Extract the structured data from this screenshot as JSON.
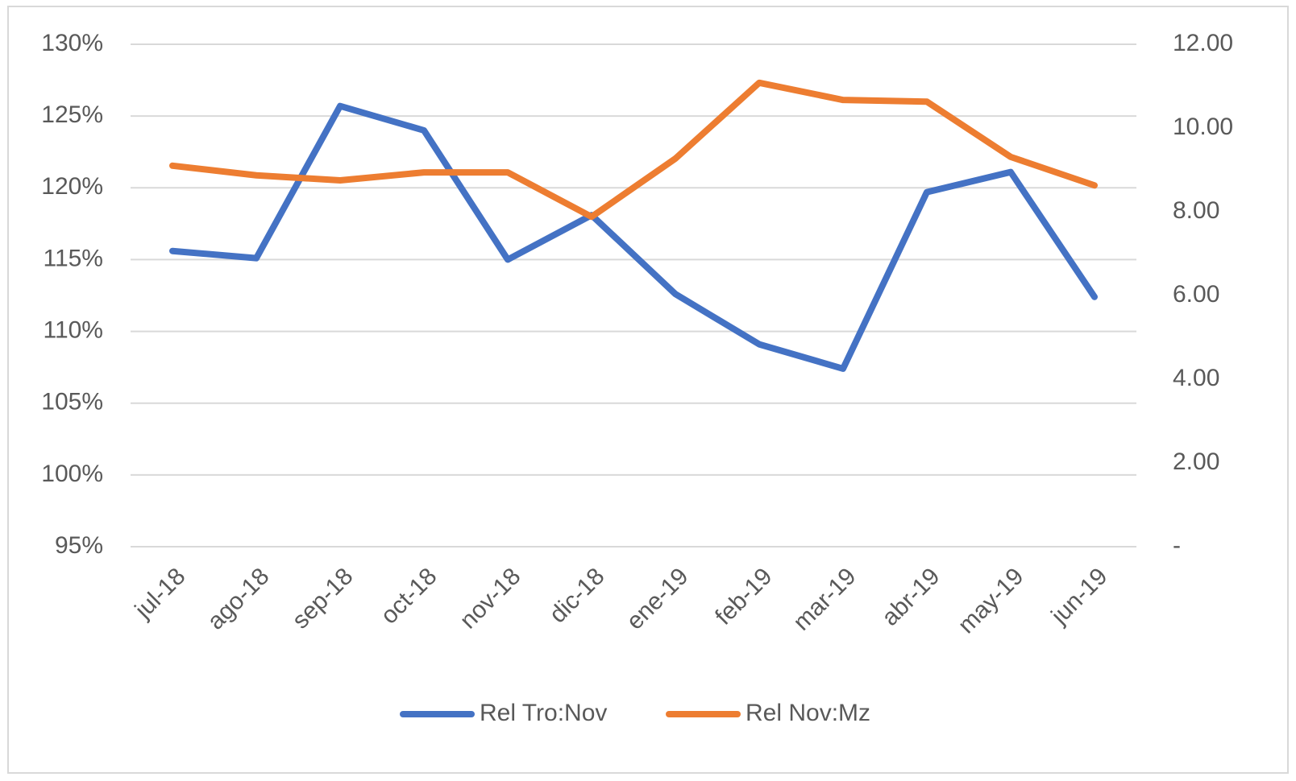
{
  "chart_data": {
    "type": "line",
    "categories": [
      "jul-18",
      "ago-18",
      "sep-18",
      "oct-18",
      "nov-18",
      "dic-18",
      "ene-19",
      "feb-19",
      "mar-19",
      "abr-19",
      "may-19",
      "jun-19"
    ],
    "series": [
      {
        "name": "Rel Tro:Nov",
        "color": "#4472c4",
        "values": [
          115.6,
          115.1,
          125.7,
          124.0,
          115.0,
          118.1,
          112.6,
          109.1,
          107.4,
          119.7,
          121.1,
          112.4
        ]
      },
      {
        "name": "Rel Nov:Mz",
        "color": "#ed7d31",
        "axis": "y2",
        "values": [
          9.1,
          8.87,
          8.75,
          8.94,
          8.94,
          7.88,
          9.27,
          11.08,
          10.67,
          10.63,
          9.31,
          8.63
        ]
      }
    ],
    "ylim": [
      95,
      130
    ],
    "yticks": [
      {
        "value": 95,
        "label": "95%"
      },
      {
        "value": 100,
        "label": "100%"
      },
      {
        "value": 105,
        "label": "105%"
      },
      {
        "value": 110,
        "label": "110%"
      },
      {
        "value": 115,
        "label": "115%"
      },
      {
        "value": 120,
        "label": "120%"
      },
      {
        "value": 125,
        "label": "125%"
      },
      {
        "value": 130,
        "label": "130%"
      }
    ],
    "y2lim": [
      0,
      12
    ],
    "y2ticks": [
      {
        "value": 0,
        "label": "-"
      },
      {
        "value": 2,
        "label": "2.00"
      },
      {
        "value": 4,
        "label": "4.00"
      },
      {
        "value": 6,
        "label": "6.00"
      },
      {
        "value": 8,
        "label": "8.00"
      },
      {
        "value": 10,
        "label": "10.00"
      },
      {
        "value": 12,
        "label": "12.00"
      }
    ],
    "grid": true,
    "legend": "bottom"
  }
}
